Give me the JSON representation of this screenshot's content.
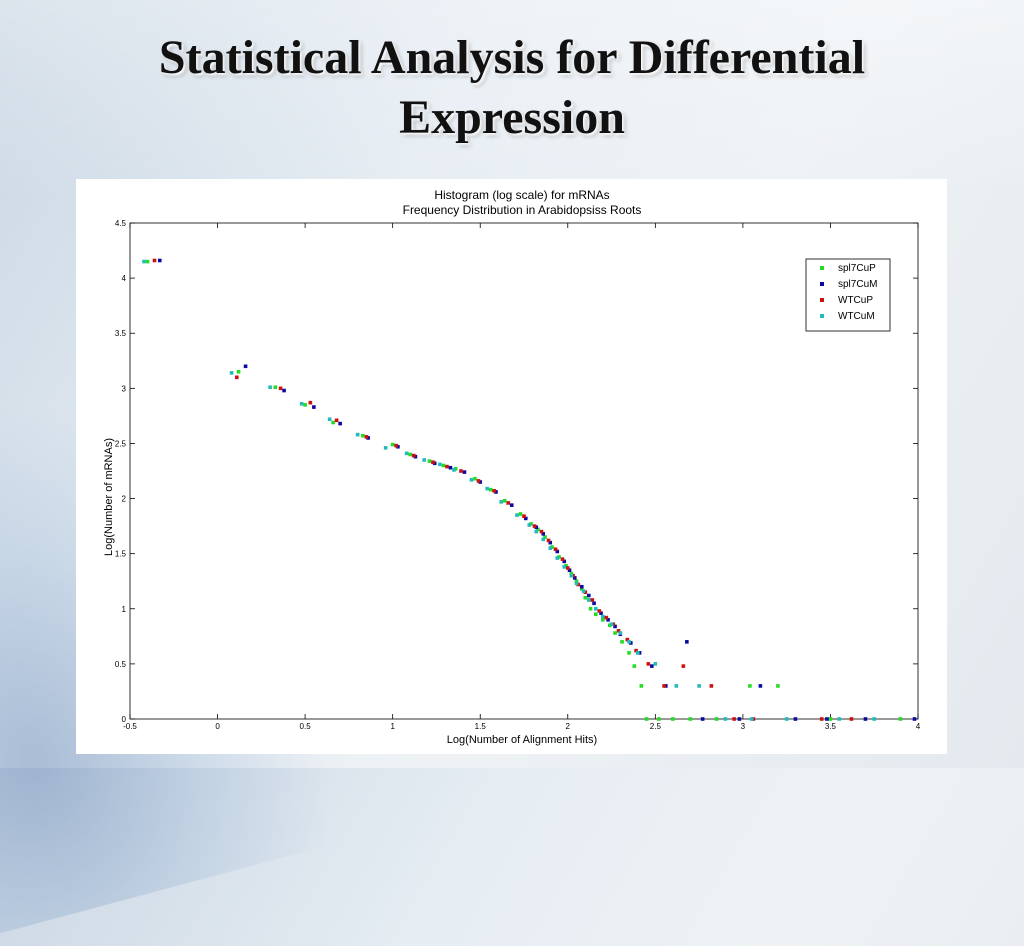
{
  "slide": {
    "title_line1": "Statistical Analysis for Differential",
    "title_line2": "Expression"
  },
  "chart_data": {
    "type": "scatter",
    "title": "Histogram (log scale) for mRNAs",
    "subtitle": "Frequency Distribution in Arabidopsiss Roots",
    "xlabel": "Log(Number of Alignment Hits)",
    "ylabel": "Log(Number of mRNAs)",
    "xlim": [
      -0.5,
      4
    ],
    "ylim": [
      0,
      4.5
    ],
    "xticks": [
      "-0.5",
      "0",
      "0.5",
      "1",
      "1.5",
      "2",
      "2.5",
      "3",
      "3.5",
      "4"
    ],
    "yticks": [
      "0",
      "0.5",
      "1",
      "1.5",
      "2",
      "2.5",
      "3",
      "3.5",
      "4",
      "4.5"
    ],
    "grid": false,
    "legend_position": "top-right",
    "series": [
      {
        "name": "spl7CuP",
        "color": "#22dd22",
        "x": [
          -0.4,
          0.12,
          0.33,
          0.5,
          0.66,
          0.83,
          1.0,
          1.1,
          1.21,
          1.29,
          1.36,
          1.47,
          1.56,
          1.64,
          1.73,
          1.79,
          1.83,
          1.87,
          1.91,
          1.95,
          1.99,
          2.02,
          2.05,
          2.08,
          2.1,
          2.13,
          2.16,
          2.2,
          2.24,
          2.27,
          2.31,
          2.35,
          2.38,
          2.42,
          2.45,
          2.52,
          2.6,
          2.7,
          2.85,
          3.04,
          3.2,
          3.5,
          3.9
        ],
        "y": [
          4.15,
          3.15,
          3.01,
          2.85,
          2.69,
          2.57,
          2.49,
          2.4,
          2.34,
          2.3,
          2.27,
          2.18,
          2.08,
          1.98,
          1.86,
          1.77,
          1.72,
          1.65,
          1.56,
          1.47,
          1.39,
          1.32,
          1.25,
          1.18,
          1.1,
          1.0,
          0.95,
          0.9,
          0.85,
          0.78,
          0.7,
          0.6,
          0.48,
          0.3,
          0.0,
          0.0,
          0.0,
          0.0,
          0.0,
          0.3,
          0.3,
          0.0,
          0.0
        ]
      },
      {
        "name": "spl7CuM",
        "color": "#0a0aa0",
        "x": [
          -0.33,
          0.16,
          0.38,
          0.55,
          0.7,
          0.86,
          1.03,
          1.13,
          1.24,
          1.33,
          1.41,
          1.5,
          1.59,
          1.68,
          1.76,
          1.82,
          1.86,
          1.9,
          1.94,
          1.98,
          2.01,
          2.04,
          2.08,
          2.12,
          2.15,
          2.19,
          2.23,
          2.27,
          2.3,
          2.36,
          2.41,
          2.48,
          2.56,
          2.68,
          2.77,
          2.98,
          3.1,
          3.3,
          3.48,
          3.7,
          3.98
        ],
        "y": [
          4.16,
          3.2,
          2.98,
          2.83,
          2.68,
          2.55,
          2.47,
          2.38,
          2.32,
          2.28,
          2.24,
          2.15,
          2.06,
          1.94,
          1.82,
          1.74,
          1.68,
          1.6,
          1.52,
          1.43,
          1.35,
          1.28,
          1.2,
          1.12,
          1.05,
          0.96,
          0.9,
          0.84,
          0.77,
          0.69,
          0.6,
          0.48,
          0.3,
          0.7,
          0.0,
          0.0,
          0.3,
          0.0,
          0.0,
          0.0,
          0.0
        ]
      },
      {
        "name": "WTCuP",
        "color": "#cc1111",
        "x": [
          -0.36,
          0.11,
          0.36,
          0.53,
          0.68,
          0.85,
          1.02,
          1.12,
          1.23,
          1.31,
          1.39,
          1.49,
          1.58,
          1.66,
          1.75,
          1.81,
          1.85,
          1.89,
          1.93,
          1.97,
          2.0,
          2.03,
          2.06,
          2.1,
          2.14,
          2.18,
          2.22,
          2.26,
          2.29,
          2.34,
          2.39,
          2.46,
          2.55,
          2.66,
          2.82,
          2.95,
          3.06,
          3.45,
          3.62
        ],
        "y": [
          4.16,
          3.1,
          3.0,
          2.87,
          2.71,
          2.56,
          2.48,
          2.39,
          2.33,
          2.29,
          2.25,
          2.16,
          2.07,
          1.96,
          1.84,
          1.75,
          1.7,
          1.62,
          1.54,
          1.45,
          1.37,
          1.3,
          1.22,
          1.15,
          1.08,
          0.98,
          0.92,
          0.86,
          0.8,
          0.72,
          0.62,
          0.5,
          0.3,
          0.48,
          0.3,
          0.0,
          0.0,
          0.0,
          0.0
        ]
      },
      {
        "name": "WTCuM",
        "color": "#22bbbb",
        "x": [
          -0.42,
          0.08,
          0.3,
          0.48,
          0.64,
          0.8,
          0.96,
          1.08,
          1.18,
          1.27,
          1.35,
          1.45,
          1.54,
          1.62,
          1.71,
          1.78,
          1.82,
          1.86,
          1.9,
          1.94,
          1.98,
          2.02,
          2.05,
          2.09,
          2.12,
          2.16,
          2.2,
          2.25,
          2.3,
          2.35,
          2.4,
          2.5,
          2.62,
          2.75,
          2.9,
          3.05,
          3.25,
          3.55,
          3.75
        ],
        "y": [
          4.15,
          3.14,
          3.01,
          2.86,
          2.72,
          2.58,
          2.46,
          2.41,
          2.35,
          2.31,
          2.26,
          2.17,
          2.09,
          1.97,
          1.85,
          1.76,
          1.7,
          1.63,
          1.55,
          1.46,
          1.38,
          1.3,
          1.23,
          1.16,
          1.08,
          1.0,
          0.93,
          0.86,
          0.78,
          0.7,
          0.6,
          0.5,
          0.3,
          0.3,
          0.0,
          0.0,
          0.0,
          0.0,
          0.0
        ]
      }
    ]
  }
}
